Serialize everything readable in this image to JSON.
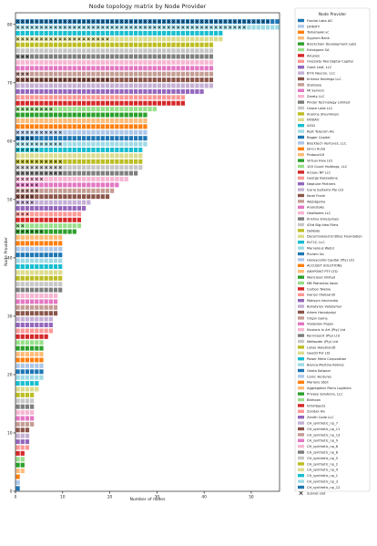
{
  "chart_data": {
    "type": "bar",
    "title": "Node topology matrix by Node Provider",
    "xlabel": "Number of nodes",
    "ylabel": "Node Provider",
    "xlim": [
      0,
      56
    ],
    "ylim": [
      0,
      82
    ],
    "x_ticks": [
      0,
      10,
      20,
      30,
      40,
      50
    ],
    "y_ticks": [
      0,
      10,
      20,
      30,
      40,
      50,
      60,
      70,
      80
    ],
    "legend_title": "Node Provider",
    "legend_position": "right outside",
    "subnet_marker_label": "Subnet slot",
    "providers": [
      {
        "name": "Fractal Labs AG",
        "color": "#1f77b4"
      },
      {
        "name": "DFINITY",
        "color": "#aec7e8"
      },
      {
        "name": "Tomahawk.vc",
        "color": "#ff7f0e"
      },
      {
        "name": "Sygnum Bank",
        "color": "#ffbb78"
      },
      {
        "name": "Blockchain Development Labs",
        "color": "#2ca02c"
      },
      {
        "name": "Extragone SA",
        "color": "#98df8a"
      },
      {
        "name": "Allusion",
        "color": "#d62728"
      },
      {
        "name": "OneSixty Two Digital Capital",
        "color": "#ff9896"
      },
      {
        "name": "Giant Leaf, LLC",
        "color": "#9467bd"
      },
      {
        "name": "87m Neuron, LLC",
        "color": "#c5b0d5"
      },
      {
        "name": "Krishna Holdings LLC",
        "color": "#8c564b"
      },
      {
        "name": "Starbase",
        "color": "#c49c94"
      },
      {
        "name": "MI Servers",
        "color": "#e377c2"
      },
      {
        "name": "Zarety LLC",
        "color": "#f7b6d2"
      },
      {
        "name": "Pindar Technology Limited",
        "color": "#7f7f7f"
      },
      {
        "name": "Uvace Labs LLC",
        "color": "#c7c7c7"
      },
      {
        "name": "Anonne Shevinksys",
        "color": "#bcbd22"
      },
      {
        "name": "NODAO",
        "color": "#dbdb8d"
      },
      {
        "name": "0X52",
        "color": "#17becf"
      },
      {
        "name": "Rest Telecom AG",
        "color": "#9edae5"
      },
      {
        "name": "Bigger Capital",
        "color": "#1f77b4"
      },
      {
        "name": "Blocktech Ventures, LLC",
        "color": "#aec7e8"
      },
      {
        "name": "Iancu Aurel",
        "color": "#ff7f0e"
      },
      {
        "name": "Protocol16",
        "color": "#ffbb78"
      },
      {
        "name": "Virtual Hive Ltd",
        "color": "#2ca02c"
      },
      {
        "name": "100 Count Holdings, LLC",
        "color": "#98df8a"
      },
      {
        "name": "Arceau NP LLC",
        "color": "#d62728"
      },
      {
        "name": "George Bassadone",
        "color": "#ff9896"
      },
      {
        "name": "Neptune Partners",
        "color": "#9467bd"
      },
      {
        "name": "Icaria Systems Pty Ltd",
        "color": "#c5b0d5"
      },
      {
        "name": "Karel Frank",
        "color": "#8c564b"
      },
      {
        "name": "Web3game",
        "color": "#c49c94"
      },
      {
        "name": "Anonstake",
        "color": "#e377c2"
      },
      {
        "name": "GeoNodes LLC",
        "color": "#f7b6d2"
      },
      {
        "name": "Krishna Enterprises",
        "color": "#7f7f7f"
      },
      {
        "name": "43rd Big Idea Films",
        "color": "#c7c7c7"
      },
      {
        "name": "DeNode",
        "color": "#bcbd22"
      },
      {
        "name": "Decentralized Entities Foundation",
        "color": "#dbdb8d"
      },
      {
        "name": "ELF22, LLC",
        "color": "#17becf"
      },
      {
        "name": "Marvelous Web3",
        "color": "#9edae5"
      },
      {
        "name": "Rivram Inc",
        "color": "#1f77b4"
      },
      {
        "name": "Honeycomb Capital (Pty) Ltd",
        "color": "#aec7e8"
      },
      {
        "name": "ACCUSET SOLUTIONS",
        "color": "#ff7f0e"
      },
      {
        "name": "ANYPOINT PTY LTD",
        "color": "#ffbb78"
      },
      {
        "name": "Wancloud limited",
        "color": "#2ca02c"
      },
      {
        "name": "MB Patrentos Ilosis",
        "color": "#98df8a"
      },
      {
        "name": "Carbon Twelve",
        "color": "#d62728"
      },
      {
        "name": "Ivanov Oleksandr",
        "color": "#ff9896"
      },
      {
        "name": "Maksym Ishchenko",
        "color": "#9467bd"
      },
      {
        "name": "Bohatyrov Volodymyr",
        "color": "#c5b0d5"
      },
      {
        "name": "Artem Horodyskyi",
        "color": "#8c564b"
      },
      {
        "name": "Origin Game",
        "color": "#c49c94"
      },
      {
        "name": "Vladyslav Popov",
        "color": "#e377c2"
      },
      {
        "name": "Illusions In Art (Pty) Ltd",
        "color": "#f7b6d2"
      },
      {
        "name": "Kernnsoort (Pty) Ltd",
        "color": "#7f7f7f"
      },
      {
        "name": "Wellsoder (Pty) Ltd",
        "color": "#c7c7c7"
      },
      {
        "name": "Lukas Helebrandt",
        "color": "#bcbd22"
      },
      {
        "name": "Geodd Pvt Ltd",
        "color": "#dbdb8d"
      },
      {
        "name": "Power Meta Corporation",
        "color": "#17becf"
      },
      {
        "name": "Bianca-Martina Rohner",
        "color": "#9edae5"
      },
      {
        "name": "Geeta Kalwani",
        "color": "#1f77b4"
      },
      {
        "name": "Coinc Ventures",
        "color": "#aec7e8"
      },
      {
        "name": "Mariano Stoll",
        "color": "#ff7f0e"
      },
      {
        "name": "Aggregatior Palnu Logistics",
        "color": "#ffbb78"
      },
      {
        "name": "Privoxy Solutions, LLC",
        "color": "#2ca02c"
      },
      {
        "name": "Bitmoon",
        "color": "#98df8a"
      },
      {
        "name": "InfoObjects",
        "color": "#d62728"
      },
      {
        "name": "Zondax AG",
        "color": "#ff9896"
      },
      {
        "name": "Zenith Code LLC",
        "color": "#9467bd"
      },
      {
        "name": "CH_synthetic_np_7",
        "color": "#c5b0d5"
      },
      {
        "name": "CH_synthetic_np_11",
        "color": "#8c564b"
      },
      {
        "name": "CH_synthetic_np_13",
        "color": "#c49c94"
      },
      {
        "name": "CH_synthetic_np_9",
        "color": "#e377c2"
      },
      {
        "name": "CH_synthetic_np_6",
        "color": "#f7b6d2"
      },
      {
        "name": "CH_synthetic_np_8",
        "color": "#7f7f7f"
      },
      {
        "name": "CH_synthetic_np_5",
        "color": "#c7c7c7"
      },
      {
        "name": "CH_synthetic_np_2",
        "color": "#bcbd22"
      },
      {
        "name": "CH_synthetic_np_4",
        "color": "#dbdb8d"
      },
      {
        "name": "CH_synthetic_np_1",
        "color": "#17becf"
      },
      {
        "name": "CH_synthetic_np_3",
        "color": "#9edae5"
      },
      {
        "name": "CH_synthetic_np_12",
        "color": "#1f77b4"
      }
    ],
    "rows": [
      {
        "provider": 80,
        "nodes": 56,
        "subnet": 54
      },
      {
        "provider": 79,
        "nodes": 56,
        "subnet": 49
      },
      {
        "provider": 78,
        "nodes": 44,
        "subnet": 0
      },
      {
        "provider": 77,
        "nodes": 44,
        "subnet": 20
      },
      {
        "provider": 76,
        "nodes": 42,
        "subnet": 0
      },
      {
        "provider": 75,
        "nodes": 42,
        "subnet": 0
      },
      {
        "provider": 74,
        "nodes": 42,
        "subnet": 3
      },
      {
        "provider": 73,
        "nodes": 42,
        "subnet": 0
      },
      {
        "provider": 72,
        "nodes": 42,
        "subnet": 0
      },
      {
        "provider": 71,
        "nodes": 42,
        "subnet": 3
      },
      {
        "provider": 70,
        "nodes": 42,
        "subnet": 20
      },
      {
        "provider": 69,
        "nodes": 42,
        "subnet": 0
      },
      {
        "provider": 68,
        "nodes": 40,
        "subnet": 0
      },
      {
        "provider": 67,
        "nodes": 36,
        "subnet": 0
      },
      {
        "provider": 66,
        "nodes": 36,
        "subnet": 0
      },
      {
        "provider": 65,
        "nodes": 30,
        "subnet": 8
      },
      {
        "provider": 64,
        "nodes": 28,
        "subnet": 0
      },
      {
        "provider": 63,
        "nodes": 28,
        "subnet": 0
      },
      {
        "provider": 62,
        "nodes": 28,
        "subnet": 0
      },
      {
        "provider": 61,
        "nodes": 28,
        "subnet": 10
      },
      {
        "provider": 60,
        "nodes": 28,
        "subnet": 4
      },
      {
        "provider": 59,
        "nodes": 28,
        "subnet": 10
      },
      {
        "provider": 58,
        "nodes": 27,
        "subnet": 5
      },
      {
        "provider": 57,
        "nodes": 27,
        "subnet": 0
      },
      {
        "provider": 56,
        "nodes": 27,
        "subnet": 10
      },
      {
        "provider": 55,
        "nodes": 27,
        "subnet": 10
      },
      {
        "provider": 54,
        "nodes": 26,
        "subnet": 10
      },
      {
        "provider": 53,
        "nodes": 24,
        "subnet": 6
      },
      {
        "provider": 52,
        "nodes": 22,
        "subnet": 5
      },
      {
        "provider": 51,
        "nodes": 21,
        "subnet": 5
      },
      {
        "provider": 50,
        "nodes": 20,
        "subnet": 4
      },
      {
        "provider": 49,
        "nodes": 16,
        "subnet": 4
      },
      {
        "provider": 48,
        "nodes": 15,
        "subnet": 0
      },
      {
        "provider": 47,
        "nodes": 14,
        "subnet": 3
      },
      {
        "provider": 46,
        "nodes": 14,
        "subnet": 0
      },
      {
        "provider": 45,
        "nodes": 14,
        "subnet": 2
      },
      {
        "provider": 44,
        "nodes": 13,
        "subnet": 6
      },
      {
        "provider": 43,
        "nodes": 10,
        "subnet": 0
      },
      {
        "provider": 42,
        "nodes": 10,
        "subnet": 0
      },
      {
        "provider": 41,
        "nodes": 10,
        "subnet": 0
      },
      {
        "provider": 40,
        "nodes": 10,
        "subnet": 0
      },
      {
        "provider": 39,
        "nodes": 10,
        "subnet": 0
      },
      {
        "provider": 38,
        "nodes": 10,
        "subnet": 0
      },
      {
        "provider": 37,
        "nodes": 10,
        "subnet": 0
      },
      {
        "provider": 36,
        "nodes": 10,
        "subnet": 0
      },
      {
        "provider": 35,
        "nodes": 10,
        "subnet": 0
      },
      {
        "provider": 34,
        "nodes": 10,
        "subnet": 0
      },
      {
        "provider": 33,
        "nodes": 9,
        "subnet": 0
      },
      {
        "provider": 32,
        "nodes": 9,
        "subnet": 0
      },
      {
        "provider": 31,
        "nodes": 9,
        "subnet": 0
      },
      {
        "provider": 30,
        "nodes": 9,
        "subnet": 0
      },
      {
        "provider": 29,
        "nodes": 8,
        "subnet": 0
      },
      {
        "provider": 28,
        "nodes": 8,
        "subnet": 0
      },
      {
        "provider": 27,
        "nodes": 8,
        "subnet": 0
      },
      {
        "provider": 26,
        "nodes": 7,
        "subnet": 0
      },
      {
        "provider": 25,
        "nodes": 6,
        "subnet": 0
      },
      {
        "provider": 24,
        "nodes": 6,
        "subnet": 0
      },
      {
        "provider": 23,
        "nodes": 6,
        "subnet": 0
      },
      {
        "provider": 22,
        "nodes": 6,
        "subnet": 0
      },
      {
        "provider": 21,
        "nodes": 6,
        "subnet": 0
      },
      {
        "provider": 20,
        "nodes": 6,
        "subnet": 0
      },
      {
        "provider": 19,
        "nodes": 6,
        "subnet": 0
      },
      {
        "provider": 18,
        "nodes": 5,
        "subnet": 0
      },
      {
        "provider": 17,
        "nodes": 5,
        "subnet": 0
      },
      {
        "provider": 16,
        "nodes": 4,
        "subnet": 0
      },
      {
        "provider": 15,
        "nodes": 4,
        "subnet": 0
      },
      {
        "provider": 14,
        "nodes": 4,
        "subnet": 0
      },
      {
        "provider": 13,
        "nodes": 4,
        "subnet": 0
      },
      {
        "provider": 12,
        "nodes": 4,
        "subnet": 0
      },
      {
        "provider": 11,
        "nodes": 4,
        "subnet": 0
      },
      {
        "provider": 10,
        "nodes": 3,
        "subnet": 0
      },
      {
        "provider": 9,
        "nodes": 3,
        "subnet": 0
      },
      {
        "provider": 8,
        "nodes": 3,
        "subnet": 0
      },
      {
        "provider": 7,
        "nodes": 3,
        "subnet": 0
      },
      {
        "provider": 6,
        "nodes": 2,
        "subnet": 0
      },
      {
        "provider": 5,
        "nodes": 2,
        "subnet": 0
      },
      {
        "provider": 4,
        "nodes": 2,
        "subnet": 0
      },
      {
        "provider": 3,
        "nodes": 2,
        "subnet": 0
      },
      {
        "provider": 2,
        "nodes": 1,
        "subnet": 0
      },
      {
        "provider": 1,
        "nodes": 1,
        "subnet": 0
      },
      {
        "provider": 0,
        "nodes": 1,
        "subnet": 0
      }
    ]
  }
}
